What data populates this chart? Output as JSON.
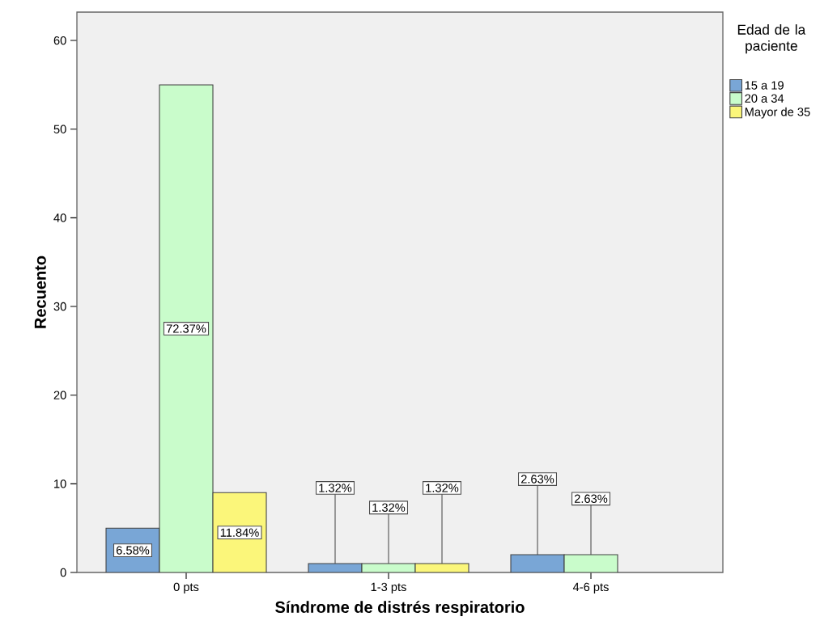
{
  "chart_data": {
    "type": "bar",
    "xlabel": "Síndrome de distrés respiratorio",
    "ylabel": "Recuento",
    "legend_title": "Edad de la paciente",
    "categories": [
      "0 pts",
      "1-3 pts",
      "4-6 pts"
    ],
    "series": [
      {
        "name": "15 a 19",
        "color": "#79a6d6",
        "values": [
          5,
          1,
          2
        ]
      },
      {
        "name": "20 a 34",
        "color": "#c9fccb",
        "values": [
          55,
          1,
          2
        ]
      },
      {
        "name": "Mayor de 35",
        "color": "#fbf67a",
        "values": [
          9,
          1,
          null
        ]
      }
    ],
    "annotations": [
      "6.58%",
      "72.37%",
      "11.84%",
      {
        "text": "1.32%",
        "y": 1
      },
      {
        "text": "1.32%",
        "y": 1
      },
      {
        "text": "1.32%",
        "y": 1
      },
      {
        "text": "2.63%",
        "y": 2
      },
      {
        "text": "2.63%",
        "y": 2
      }
    ],
    "ylim": [
      0,
      63.2
    ],
    "yticks": [
      0,
      10,
      20,
      30,
      40,
      50,
      60
    ],
    "grid": false,
    "legend": "right"
  }
}
